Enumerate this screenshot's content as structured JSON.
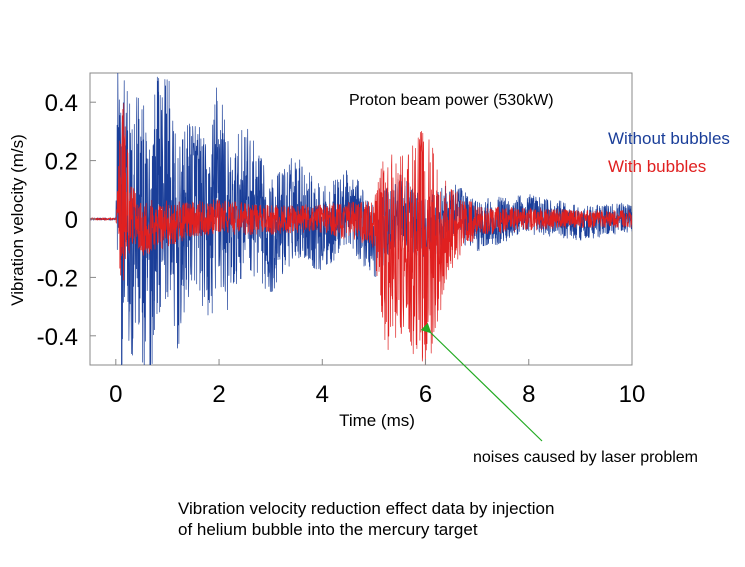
{
  "chart_data": {
    "type": "line",
    "title": "",
    "in_plot_label": "Proton beam power (530kW)",
    "xlabel": "Time (ms)",
    "ylabel": "Vibration velocity (m/s)",
    "xlim": [
      -0.5,
      10
    ],
    "ylim": [
      -0.5,
      0.5
    ],
    "x_ticks": [
      0,
      2,
      4,
      6,
      8,
      10
    ],
    "x_tick_labels": [
      "0",
      "2",
      "4",
      "6",
      "8",
      "10"
    ],
    "y_ticks": [
      0.4,
      0.2,
      0,
      -0.2,
      -0.4
    ],
    "y_tick_labels": [
      "0.4",
      "0.2",
      "0",
      "-0.2",
      "-0.4"
    ],
    "grid": false,
    "legend_position": "right, outside plot",
    "series": [
      {
        "name": "Without bubbles",
        "color": "#1a3e99",
        "x": [
          -0.5,
          0.0,
          0.05,
          0.1,
          0.2,
          0.3,
          0.4,
          0.6,
          0.8,
          1.0,
          1.2,
          1.5,
          1.8,
          2.0,
          2.2,
          2.5,
          3.0,
          3.5,
          4.0,
          4.5,
          5.0,
          5.5,
          6.0,
          6.5,
          7.0,
          8.0,
          9.0,
          10.0
        ],
        "y": [
          0.0,
          0.0,
          0.5,
          -0.3,
          0.5,
          -0.4,
          0.3,
          -0.5,
          0.25,
          0.35,
          -0.35,
          0.28,
          -0.2,
          0.42,
          -0.15,
          0.25,
          -0.18,
          0.15,
          -0.12,
          0.12,
          -0.2,
          0.1,
          -0.15,
          0.08,
          -0.06,
          0.05,
          -0.04,
          0.02
        ],
        "envelope_amplitude": [
          0.0,
          0.0,
          0.5,
          0.5,
          0.5,
          0.48,
          0.45,
          0.5,
          0.42,
          0.4,
          0.35,
          0.3,
          0.3,
          0.42,
          0.28,
          0.25,
          0.2,
          0.18,
          0.15,
          0.13,
          0.14,
          0.12,
          0.12,
          0.1,
          0.09,
          0.07,
          0.06,
          0.05
        ]
      },
      {
        "name": "With bubbles",
        "color": "#e02020",
        "x": [
          -0.5,
          0.0,
          0.1,
          0.15,
          0.2,
          0.3,
          0.5,
          1.0,
          1.5,
          2.0,
          3.0,
          4.0,
          5.0,
          5.2,
          5.5,
          5.8,
          6.0,
          6.2,
          6.5,
          7.0,
          8.0,
          9.0,
          10.0
        ],
        "y": [
          0.0,
          0.0,
          0.22,
          0.3,
          0.2,
          0.05,
          -0.08,
          -0.05,
          0.0,
          0.02,
          -0.01,
          0.01,
          -0.05,
          -0.35,
          -0.25,
          -0.4,
          -0.32,
          -0.25,
          -0.1,
          -0.02,
          0.0,
          0.0,
          0.0
        ],
        "envelope_amplitude": [
          0.0,
          0.0,
          0.3,
          0.32,
          0.25,
          0.1,
          0.1,
          0.08,
          0.06,
          0.06,
          0.05,
          0.05,
          0.08,
          0.35,
          0.3,
          0.4,
          0.45,
          0.3,
          0.15,
          0.05,
          0.04,
          0.03,
          0.03
        ]
      }
    ],
    "annotations": [
      {
        "text": "noises caused by laser problem",
        "points_to": {
          "x": 6.0,
          "y": -0.38
        },
        "arrow_color": "#22aa22"
      }
    ]
  },
  "caption": {
    "line1": "Vibration velocity reduction effect data by injection",
    "line2": "of helium bubble into the mercury target"
  }
}
